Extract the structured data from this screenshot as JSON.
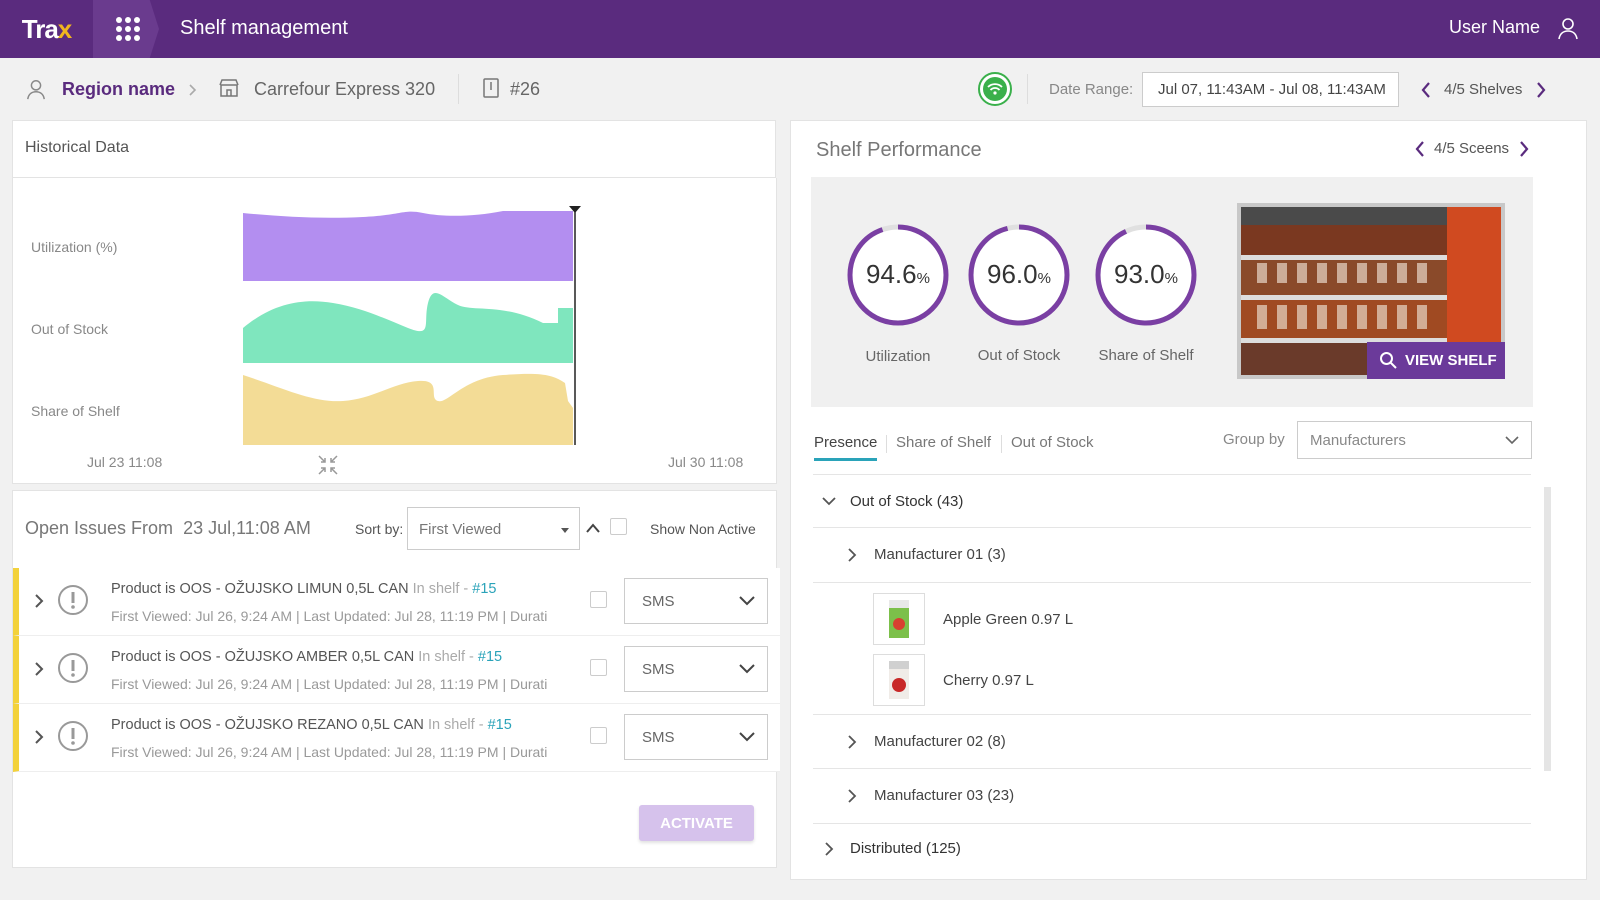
{
  "app": {
    "logo_a": "Tra",
    "logo_b": "x",
    "title": "Shelf management",
    "user_name": "User Name"
  },
  "breadcrumb": {
    "region": "Region name",
    "store": "Carrefour Express 320",
    "shelf": "#26"
  },
  "header": {
    "date_range_label": "Date Range:",
    "date_range_value": "Jul 07, 11:43AM - Jul 08, 11:43AM",
    "shelves_nav": "4/5 Shelves",
    "status_color": "#3ab04b"
  },
  "historical": {
    "title": "Historical Data",
    "rows": [
      "Utilization (%)",
      "Out of Stock",
      "Share of Shelf"
    ],
    "x_start": "Jul 23 11:08",
    "x_end": "Jul 30 11:08",
    "colors": [
      "#b38ef0",
      "#7fe6be",
      "#f3dc96"
    ]
  },
  "issues": {
    "title_prefix": "Open Issues From",
    "title_date": "23 Jul,11:08 AM",
    "sort_label": "Sort by:",
    "sort_value": "First Viewed",
    "show_non_active": "Show Non Active",
    "activate_label": "ACTIVATE",
    "items": [
      {
        "text": "Product is OOS - OŽUJSKO LIMUN 0,5L CAN",
        "in_shelf": "In shelf -",
        "shelf": "#15",
        "meta": "First Viewed: Jul 26, 9:24 AM | Last Updated: Jul 28, 11:19 PM | Durati",
        "channel": "SMS"
      },
      {
        "text": "Product is OOS - OŽUJSKO AMBER 0,5L CAN",
        "in_shelf": "In shelf -",
        "shelf": "#15",
        "meta": "First Viewed: Jul 26, 9:24 AM | Last Updated: Jul 28, 11:19 PM | Durati",
        "channel": "SMS"
      },
      {
        "text": "Product is OOS - OŽUJSKO REZANO 0,5L CAN",
        "in_shelf": "In shelf -",
        "shelf": "#15",
        "meta": "First Viewed: Jul 26, 9:24 AM | Last Updated: Jul 28, 11:19 PM | Durati",
        "channel": "SMS"
      }
    ]
  },
  "performance": {
    "title": "Shelf Performance",
    "scenes_nav": "4/5 Sceens",
    "gauges": [
      {
        "value": "94.6",
        "unit": "%",
        "fraction": 0.946,
        "label": "Utilization"
      },
      {
        "value": "96.0",
        "unit": "%",
        "fraction": 0.96,
        "label": "Out of Stock"
      },
      {
        "value": "93.0",
        "unit": "%",
        "fraction": 0.93,
        "label": "Share of Shelf"
      }
    ],
    "view_shelf": "VIEW SHELF",
    "accent": "#7a3fa3"
  },
  "tabs": {
    "items": [
      "Presence",
      "Share of Shelf",
      "Out of Stock"
    ],
    "active": "Presence"
  },
  "group_by": {
    "label": "Group by",
    "value": "Manufacturers"
  },
  "tree": {
    "out_of_stock": "Out of Stock (43)",
    "m1": "Manufacturer 01 (3)",
    "p1": "Apple Green 0.97 L",
    "p2": "Cherry 0.97 L",
    "m2": "Manufacturer 02 (8)",
    "m3": "Manufacturer 03 (23)",
    "distributed": "Distributed (125)"
  }
}
